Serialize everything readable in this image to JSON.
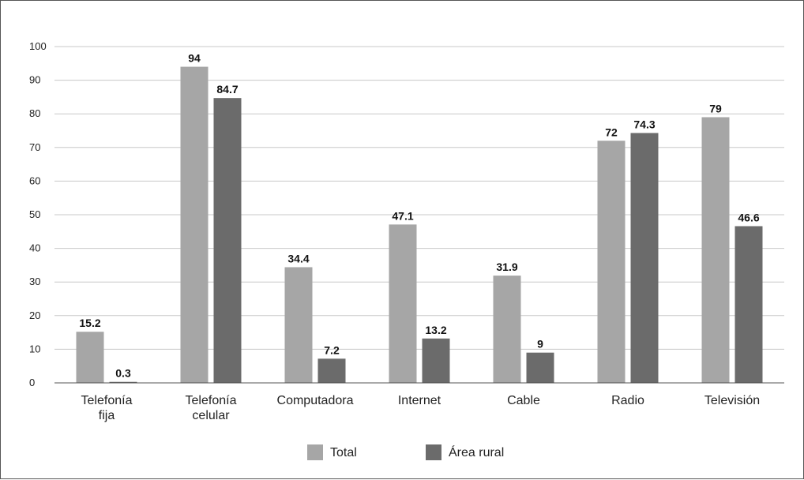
{
  "chart_data": {
    "type": "bar",
    "categories": [
      [
        "Telefonía",
        "fija"
      ],
      [
        "Telefonía",
        "celular"
      ],
      [
        "Computadora"
      ],
      [
        "Internet"
      ],
      [
        "Cable"
      ],
      [
        "Radio"
      ],
      [
        "Televisión"
      ]
    ],
    "series": [
      {
        "name": "Total",
        "color": "#a6a6a6",
        "values": [
          15.2,
          94,
          34.4,
          47.1,
          31.9,
          72,
          79
        ]
      },
      {
        "name": "Área rural",
        "color": "#6b6b6b",
        "values": [
          0.3,
          84.7,
          7.2,
          13.2,
          9,
          74.3,
          46.6
        ]
      }
    ],
    "data_labels": [
      [
        "15.2",
        "94",
        "34.4",
        "47.1",
        "31.9",
        "72",
        "79"
      ],
      [
        "0.3",
        "84.7",
        "7.2",
        "13.2",
        "9",
        "74.3",
        "46.6"
      ]
    ],
    "yticks": [
      0,
      10,
      20,
      30,
      40,
      50,
      60,
      70,
      80,
      90,
      100
    ],
    "ylim": [
      0,
      100
    ],
    "grid": true,
    "legend_position": "bottom",
    "title": "",
    "xlabel": "",
    "ylabel": ""
  }
}
